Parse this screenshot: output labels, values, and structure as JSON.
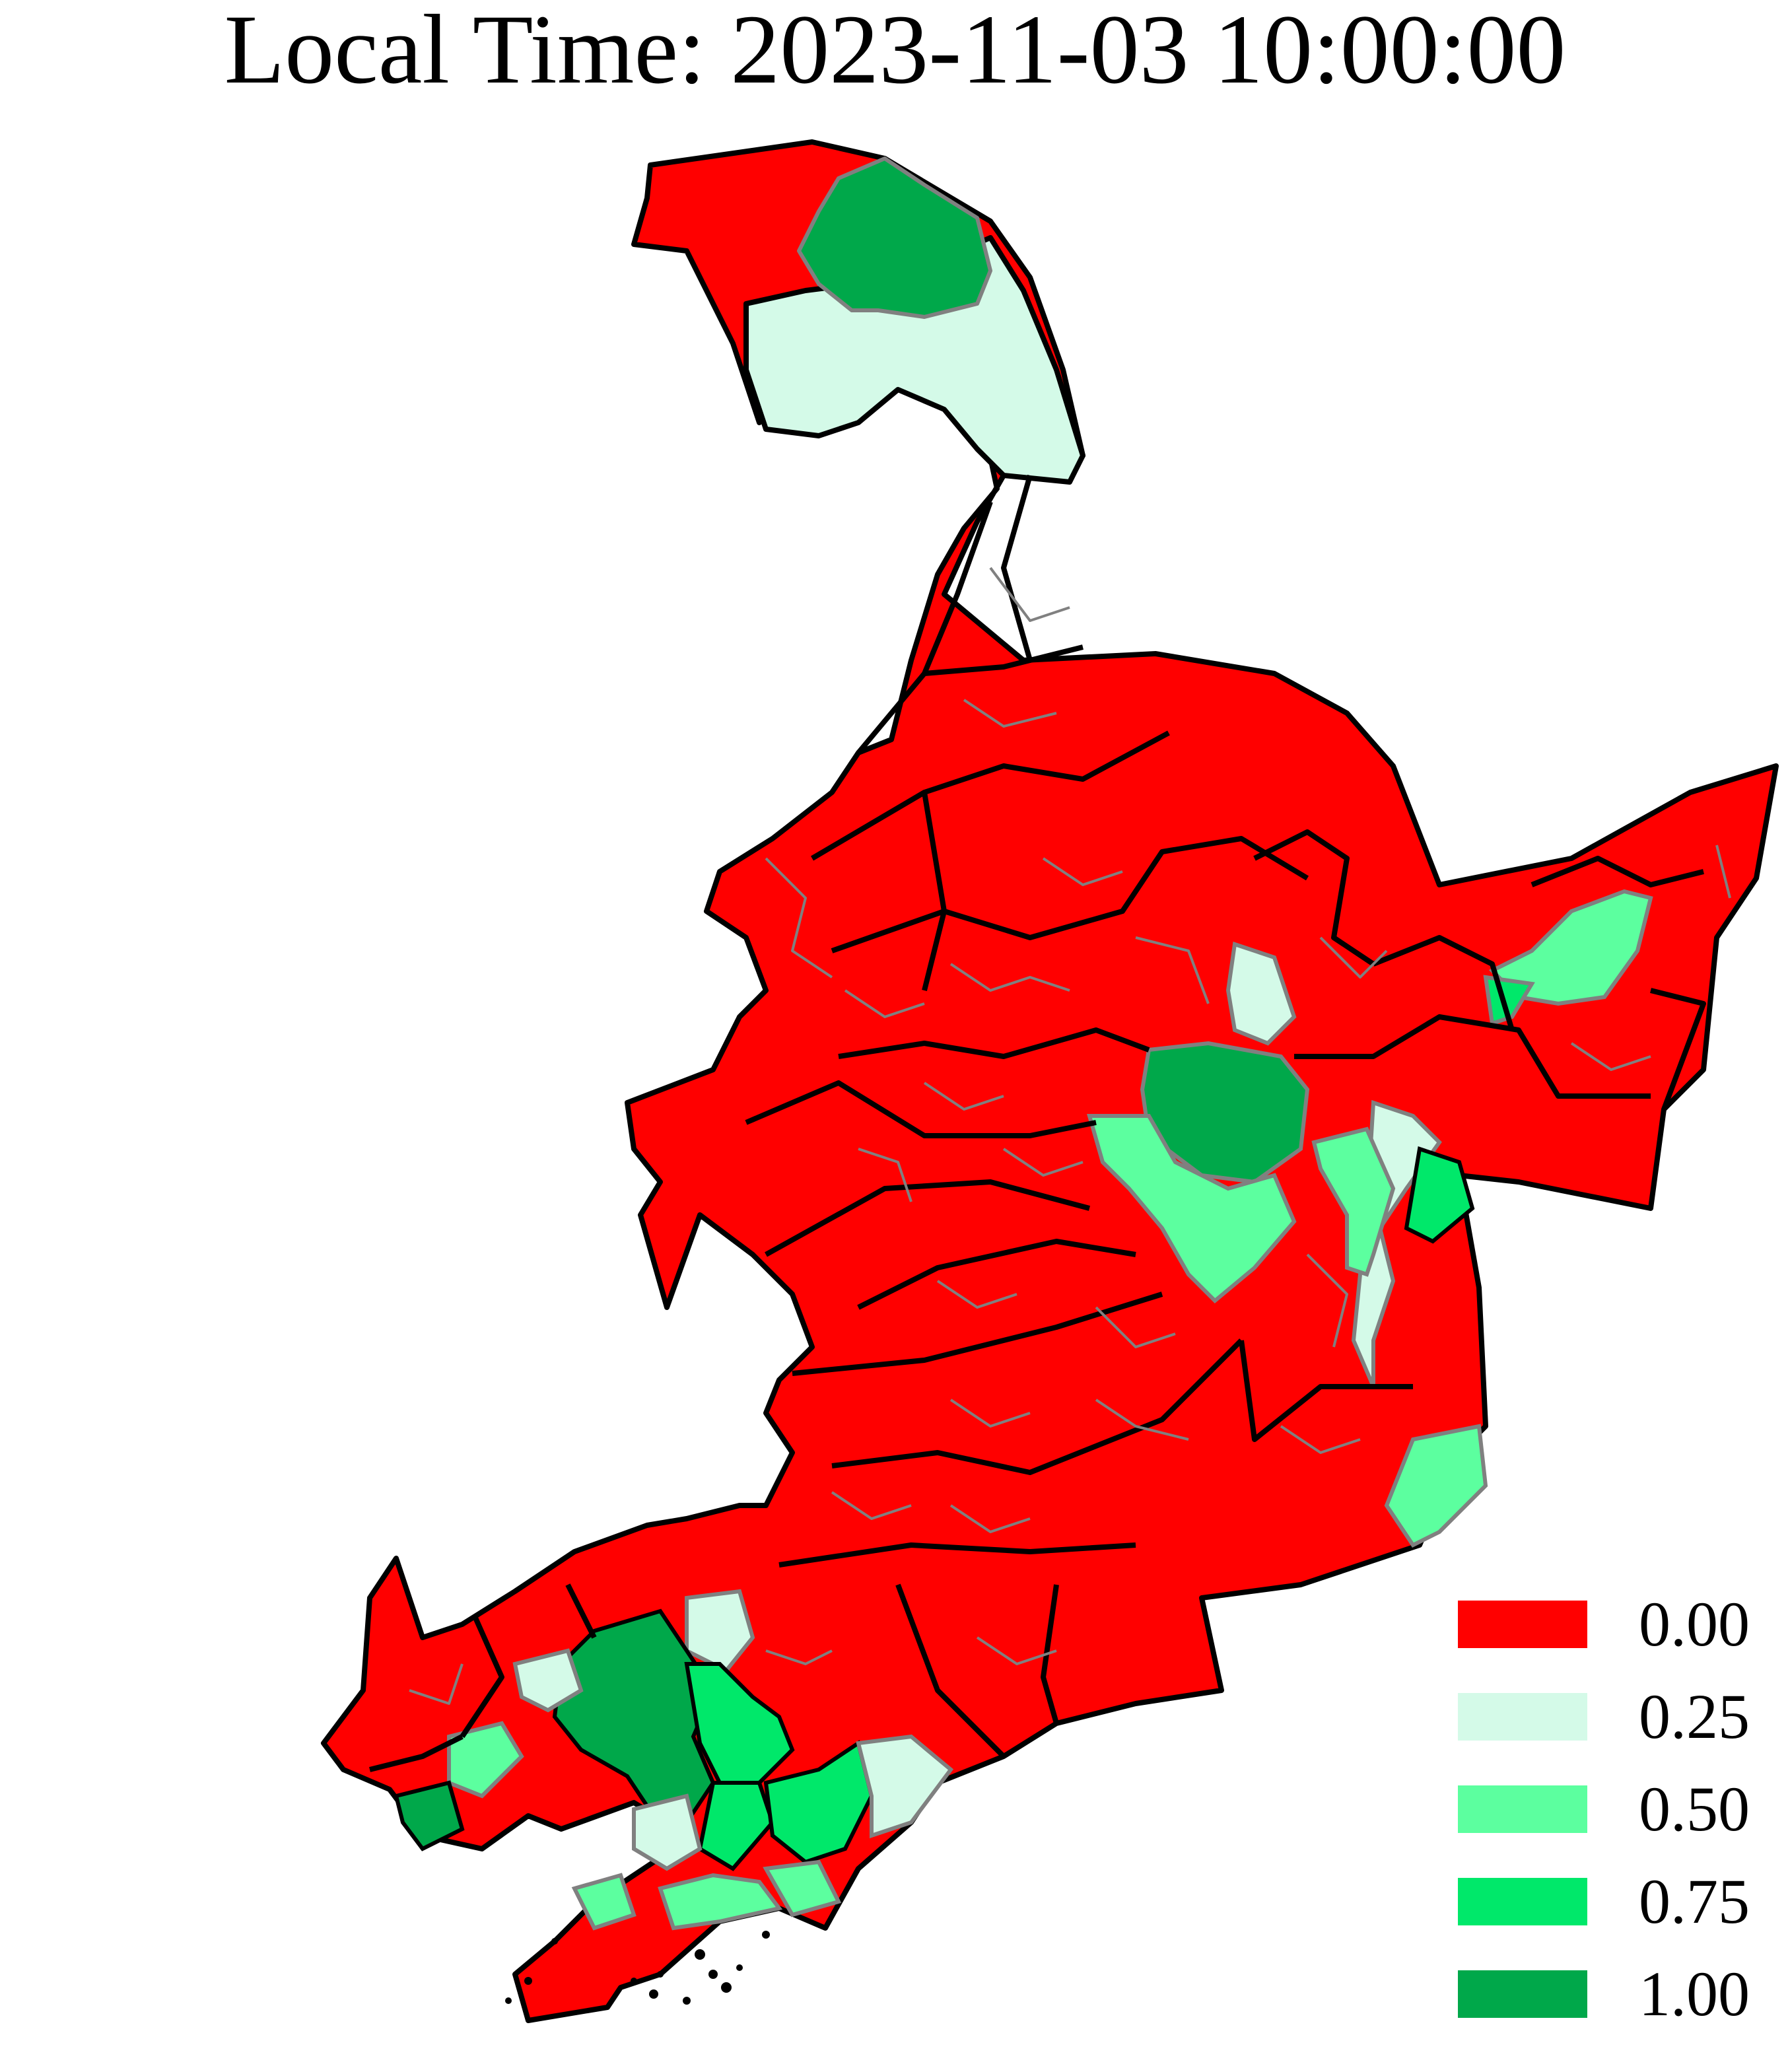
{
  "title": "Local Time: 2023-11-03 10:00:00",
  "colors": {
    "v000": "#ff0000",
    "v025": "#d4fae8",
    "v050": "#5cff9f",
    "v075": "#00e86a",
    "v100": "#00a84a",
    "province_border": "#000000",
    "county_border": "#808080"
  },
  "legend": [
    {
      "label": "0.00",
      "color": "#ff0000"
    },
    {
      "label": "0.25",
      "color": "#d4fae8"
    },
    {
      "label": "0.50",
      "color": "#5cff9f"
    },
    {
      "label": "0.75",
      "color": "#00e86a"
    },
    {
      "label": "1.00",
      "color": "#00a84a"
    }
  ]
}
